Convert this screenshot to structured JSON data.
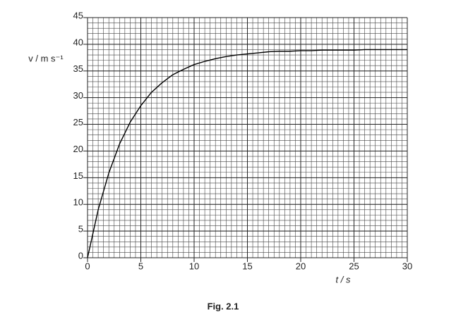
{
  "chart_data": {
    "type": "line",
    "title": "Fig. 2.1",
    "x_label": "t / s",
    "y_label": "v / m s⁻¹",
    "x": [
      0,
      1,
      2,
      3,
      4,
      5,
      6,
      7,
      8,
      9,
      10,
      11,
      12,
      13,
      14,
      15,
      16,
      17,
      18,
      19,
      20,
      21,
      22,
      23,
      24,
      25,
      26,
      27,
      28,
      29,
      30
    ],
    "series": [
      {
        "name": "v",
        "color": "#000000",
        "values": [
          0,
          9.0,
          15.9,
          21.3,
          25.4,
          28.5,
          31.0,
          32.8,
          34.3,
          35.3,
          36.2,
          36.8,
          37.3,
          37.7,
          38.0,
          38.2,
          38.4,
          38.6,
          38.7,
          38.7,
          38.8,
          38.8,
          38.9,
          38.9,
          38.9,
          38.9,
          39,
          39,
          39,
          39,
          39
        ]
      }
    ],
    "xlim": [
      0,
      30
    ],
    "xticks": [
      0,
      5,
      10,
      15,
      20,
      25,
      30
    ],
    "ylim": [
      0,
      45
    ],
    "yticks": [
      0,
      5,
      10,
      15,
      20,
      25,
      30,
      35,
      40,
      45
    ],
    "grid": {
      "x_step": 0.5,
      "y_step": 1
    }
  }
}
